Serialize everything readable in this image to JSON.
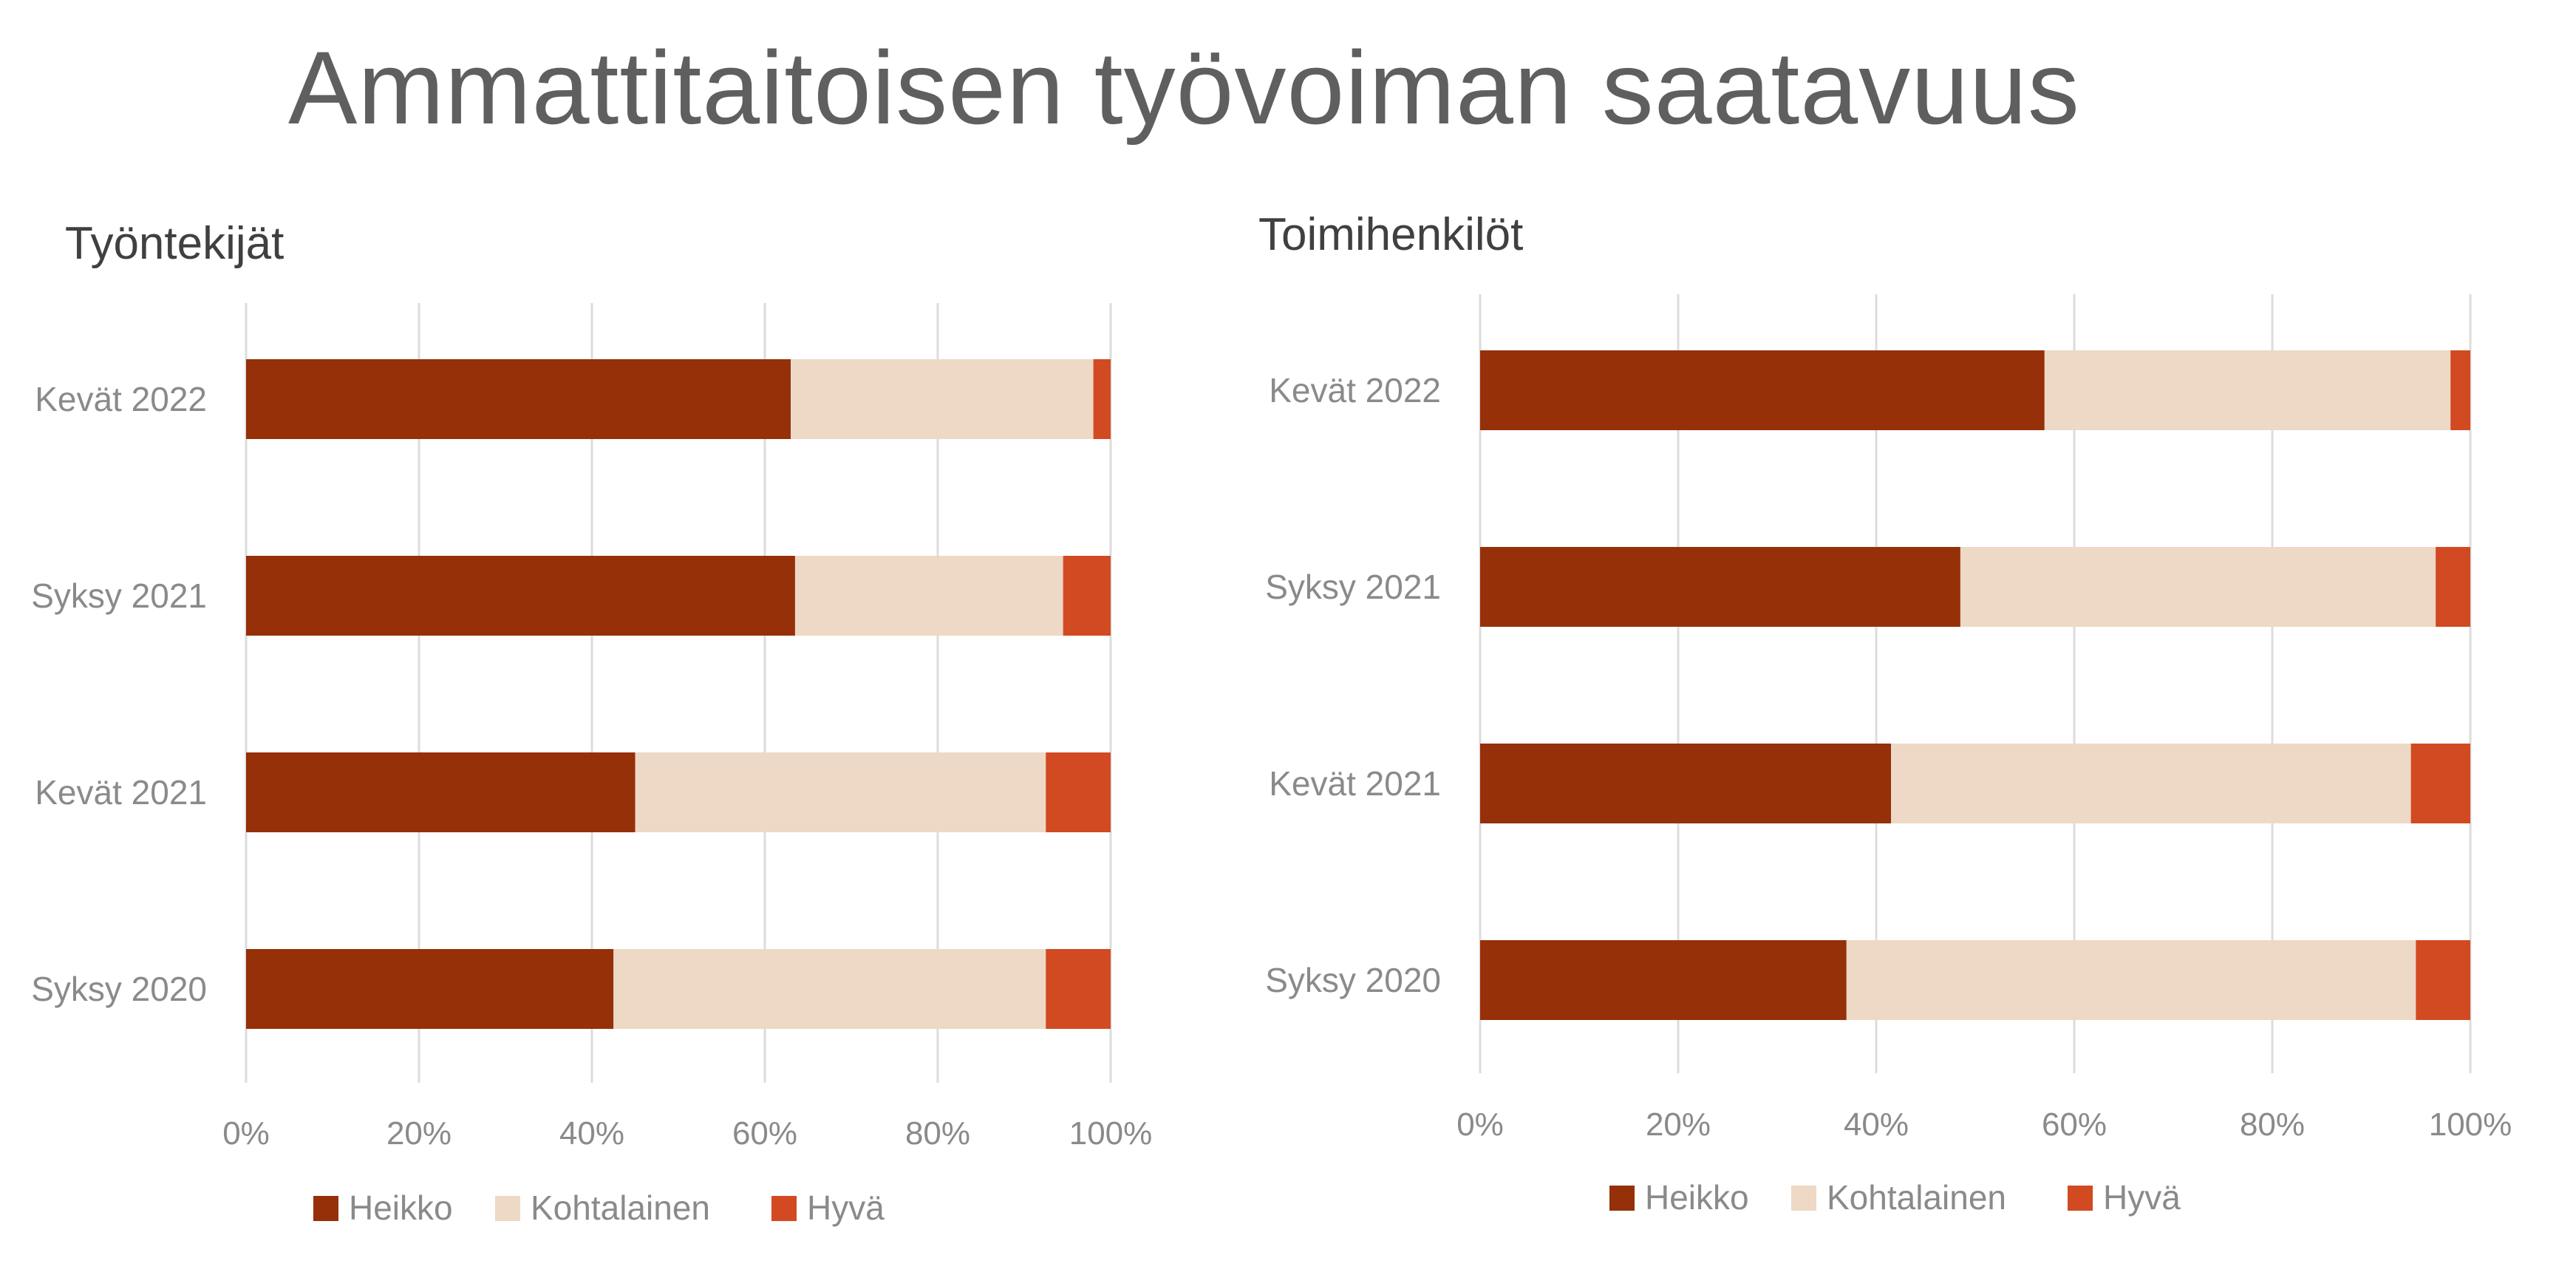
{
  "page": {
    "title": "Ammattitaitoisen työvoiman saatavuus"
  },
  "chart_data": [
    {
      "type": "bar",
      "orientation": "horizontal",
      "stacked": "percent",
      "title": "Työntekijät",
      "categories": [
        "Kevät 2022",
        "Syksy 2021",
        "Kevät 2021",
        "Syksy 2020"
      ],
      "series": [
        {
          "name": "Heikko",
          "color": "#953008",
          "values": [
            63,
            63.5,
            45,
            42.5
          ]
        },
        {
          "name": "Kohtalainen",
          "color": "#edd9c5",
          "values": [
            35,
            31,
            47.5,
            50
          ]
        },
        {
          "name": "Hyvä",
          "color": "#d14a22",
          "values": [
            2,
            5.5,
            7.5,
            7.5
          ]
        }
      ],
      "xlim": [
        0,
        100
      ],
      "xticks": [
        "0%",
        "20%",
        "40%",
        "60%",
        "80%",
        "100%"
      ],
      "grid": true,
      "legend": "bottom"
    },
    {
      "type": "bar",
      "orientation": "horizontal",
      "stacked": "percent",
      "title": "Toimihenkilöt",
      "categories": [
        "Kevät 2022",
        "Syksy 2021",
        "Kevät 2021",
        "Syksy 2020"
      ],
      "series": [
        {
          "name": "Heikko",
          "color": "#953008",
          "values": [
            57,
            48.5,
            41.5,
            37
          ]
        },
        {
          "name": "Kohtalainen",
          "color": "#edd9c5",
          "values": [
            41,
            48,
            52.5,
            57.5
          ]
        },
        {
          "name": "Hyvä",
          "color": "#d14a22",
          "values": [
            2,
            3.5,
            6,
            5.5
          ]
        }
      ],
      "xlim": [
        0,
        100
      ],
      "xticks": [
        "0%",
        "20%",
        "40%",
        "60%",
        "80%",
        "100%"
      ],
      "grid": true,
      "legend": "bottom"
    }
  ]
}
